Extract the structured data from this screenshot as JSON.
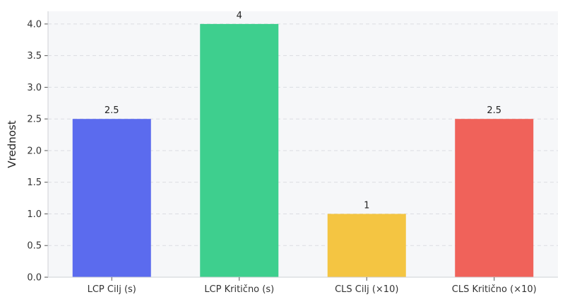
{
  "chart_data": {
    "type": "bar",
    "title": "",
    "xlabel": "",
    "ylabel": "Vrednost",
    "ylim": [
      0,
      4.2
    ],
    "yticks": [
      "0.0",
      "0.5",
      "1.0",
      "1.5",
      "2.0",
      "2.5",
      "3.0",
      "3.5",
      "4.0"
    ],
    "categories": [
      "LCP Cilj (s)",
      "LCP Kritično (s)",
      "CLS Cilj (×10)",
      "CLS Kritično (×10)"
    ],
    "values": [
      2.5,
      4,
      1,
      2.5
    ],
    "value_labels": [
      "2.5",
      "4",
      "1",
      "2.5"
    ],
    "colors": [
      "#5b6bee",
      "#3ecf8e",
      "#f4c542",
      "#f0625a"
    ],
    "grid": true,
    "grid_style": "dashed-horizontal",
    "background": "#f6f7f9"
  }
}
